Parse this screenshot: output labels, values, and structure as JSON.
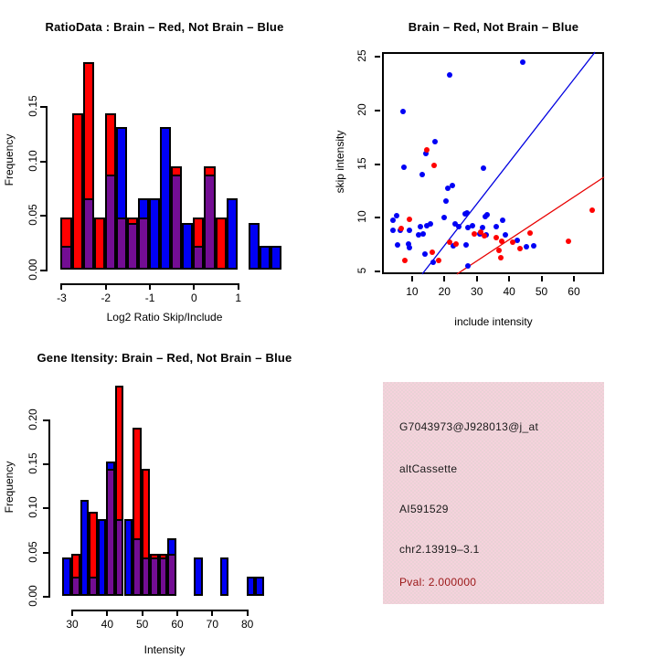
{
  "chart_data": [
    {
      "type": "bar",
      "subtype": "overlaid-histogram",
      "title": "RatioData : Brain – Red, Not Brain – Blue",
      "xlabel": "Log2 Ratio Skip/Include",
      "ylabel": "Frequency",
      "xlim": [
        -3.3,
        1.98
      ],
      "ylim": [
        0,
        0.1993
      ],
      "bin_width": 0.25,
      "xticks": [
        "-3",
        "-2",
        "-1",
        "0",
        "1"
      ],
      "xtick_values": [
        -3,
        -2,
        -1,
        0,
        1
      ],
      "yticks": [
        "0.00",
        "0.05",
        "0.10",
        "0.15"
      ],
      "ytick_values": [
        0,
        0.05,
        0.1,
        0.15
      ],
      "grid": false,
      "legend": "none",
      "series": [
        {
          "name": "Brain",
          "color": "#FF0000"
        },
        {
          "name": "Not Brain",
          "color": "#0000F5"
        },
        {
          "name": "Overlap",
          "color": "#730D93"
        }
      ],
      "bins": [
        {
          "x0": -3.0,
          "red": 0.048,
          "blue": 0.022
        },
        {
          "x0": -2.75,
          "red": 0.143,
          "blue": 0
        },
        {
          "x0": -2.5,
          "red": 0.19,
          "blue": 0.065
        },
        {
          "x0": -2.25,
          "red": 0.048,
          "blue": 0
        },
        {
          "x0": -2.0,
          "red": 0.143,
          "blue": 0.087
        },
        {
          "x0": -1.75,
          "red": 0.048,
          "blue": 0.131
        },
        {
          "x0": -1.5,
          "red": 0.048,
          "blue": 0.043
        },
        {
          "x0": -1.25,
          "red": 0.048,
          "blue": 0.065
        },
        {
          "x0": -1.0,
          "red": 0,
          "blue": 0.065
        },
        {
          "x0": -0.75,
          "red": 0,
          "blue": 0.131
        },
        {
          "x0": -0.5,
          "red": 0.095,
          "blue": 0.087
        },
        {
          "x0": -0.25,
          "red": 0,
          "blue": 0.043
        },
        {
          "x0": 0.0,
          "red": 0.048,
          "blue": 0.022
        },
        {
          "x0": 0.25,
          "red": 0.095,
          "blue": 0.087
        },
        {
          "x0": 0.5,
          "red": 0.048,
          "blue": 0
        },
        {
          "x0": 0.75,
          "red": 0,
          "blue": 0.065
        },
        {
          "x0": 1.25,
          "red": 0,
          "blue": 0.043
        },
        {
          "x0": 1.5,
          "red": 0,
          "blue": 0.022
        },
        {
          "x0": 1.75,
          "red": 0,
          "blue": 0.022
        }
      ]
    },
    {
      "type": "scatter",
      "title": "Brain – Red, Not Brain – Blue",
      "xlabel": "include intensity",
      "ylabel": "skip intensity",
      "xlim": [
        1.0,
        69.6
      ],
      "ylim": [
        4.65,
        25.35
      ],
      "xticks": [
        "10",
        "20",
        "30",
        "40",
        "50",
        "60"
      ],
      "xtick_values": [
        10,
        20,
        30,
        40,
        50,
        60
      ],
      "yticks": [
        "5",
        "10",
        "15",
        "20",
        "25"
      ],
      "ytick_values": [
        5,
        10,
        15,
        20,
        25
      ],
      "grid": false,
      "legend": "none",
      "series": [
        {
          "name": "Not Brain",
          "color": "#0000F5",
          "points": [
            [
              44.5,
              24.4
            ],
            [
              21.8,
              23.2
            ],
            [
              7.5,
              19.8
            ],
            [
              17.5,
              17.0
            ],
            [
              14.6,
              15.9
            ],
            [
              7.7,
              14.6
            ],
            [
              32.3,
              14.5
            ],
            [
              13.4,
              13.9
            ],
            [
              21.3,
              12.7
            ],
            [
              22.8,
              12.9
            ],
            [
              20.8,
              11.5
            ],
            [
              27.2,
              10.4
            ],
            [
              5.5,
              10.1
            ],
            [
              20.2,
              9.9
            ],
            [
              26.7,
              10.3
            ],
            [
              33.4,
              10.2
            ],
            [
              32.8,
              10.0
            ],
            [
              38.4,
              9.7
            ],
            [
              4.3,
              9.7
            ],
            [
              16.1,
              9.3
            ],
            [
              14.9,
              9.2
            ],
            [
              23.5,
              9.3
            ],
            [
              24.7,
              9.1
            ],
            [
              12.8,
              9.1
            ],
            [
              27.5,
              9.0
            ],
            [
              28.9,
              9.2
            ],
            [
              32.0,
              9.0
            ],
            [
              33.1,
              8.3
            ],
            [
              31.1,
              8.4
            ],
            [
              36.2,
              9.1
            ],
            [
              4.5,
              8.7
            ],
            [
              6.6,
              8.7
            ],
            [
              9.4,
              8.7
            ],
            [
              12.2,
              8.3
            ],
            [
              13.6,
              8.4
            ],
            [
              5.8,
              7.4
            ],
            [
              9.2,
              7.5
            ],
            [
              9.4,
              7.1
            ],
            [
              22.9,
              7.3
            ],
            [
              26.9,
              7.4
            ],
            [
              39.0,
              8.3
            ],
            [
              42.7,
              7.8
            ],
            [
              45.5,
              7.2
            ],
            [
              48.0,
              7.3
            ],
            [
              14.2,
              6.5
            ],
            [
              16.8,
              5.8
            ],
            [
              27.5,
              5.4
            ]
          ]
        },
        {
          "name": "Brain",
          "color": "#FF0000",
          "points": [
            [
              14.8,
              16.2
            ],
            [
              17.0,
              14.8
            ],
            [
              9.4,
              9.8
            ],
            [
              6.8,
              8.9
            ],
            [
              21.8,
              7.6
            ],
            [
              23.8,
              7.5
            ],
            [
              29.4,
              8.4
            ],
            [
              31.5,
              8.6
            ],
            [
              32.5,
              8.2
            ],
            [
              36.3,
              8.1
            ],
            [
              38.0,
              7.7
            ],
            [
              41.5,
              7.6
            ],
            [
              43.5,
              7.0
            ],
            [
              46.6,
              8.5
            ],
            [
              58.6,
              7.7
            ],
            [
              66.0,
              10.6
            ],
            [
              8.0,
              5.9
            ],
            [
              16.5,
              6.7
            ],
            [
              18.5,
              5.9
            ],
            [
              37.2,
              6.9
            ],
            [
              37.8,
              6.2
            ]
          ]
        }
      ],
      "lines": [
        {
          "name": "not-brain-fit",
          "color": "#0000E0",
          "x1": 13.4,
          "y1": 4.65,
          "x2": 66.8,
          "y2": 25.35
        },
        {
          "name": "brain-fit",
          "color": "#E80000",
          "x1": 24.1,
          "y1": 4.65,
          "x2": 69.6,
          "y2": 13.7
        }
      ]
    },
    {
      "type": "bar",
      "subtype": "overlaid-histogram",
      "title": "Gene Itensity: Brain – Red, Not Brain – Blue",
      "xlabel": "Intensity",
      "ylabel": "Frequency",
      "xlim": [
        24,
        90
      ],
      "ylim": [
        0,
        0.245
      ],
      "bin_width": 2.5,
      "xticks": [
        "30",
        "40",
        "50",
        "60",
        "70",
        "80"
      ],
      "xtick_values": [
        30,
        40,
        50,
        60,
        70,
        80
      ],
      "yticks": [
        "0.00",
        "0.05",
        "0.10",
        "0.15",
        "0.20"
      ],
      "ytick_values": [
        0,
        0.05,
        0.1,
        0.15,
        0.2
      ],
      "grid": false,
      "legend": "none",
      "series": [
        {
          "name": "Brain",
          "color": "#FF0000"
        },
        {
          "name": "Not Brain",
          "color": "#0000F5"
        },
        {
          "name": "Overlap",
          "color": "#730D93"
        }
      ],
      "bins": [
        {
          "x0": 27.5,
          "red": 0,
          "blue": 0.043
        },
        {
          "x0": 30.0,
          "red": 0.048,
          "blue": 0.022
        },
        {
          "x0": 32.5,
          "red": 0,
          "blue": 0.109
        },
        {
          "x0": 35.0,
          "red": 0.095,
          "blue": 0.022
        },
        {
          "x0": 37.5,
          "red": 0,
          "blue": 0.087
        },
        {
          "x0": 40.0,
          "red": 0.144,
          "blue": 0.152
        },
        {
          "x0": 42.5,
          "red": 0.238,
          "blue": 0.087
        },
        {
          "x0": 45.0,
          "red": 0,
          "blue": 0.087
        },
        {
          "x0": 47.5,
          "red": 0.19,
          "blue": 0.065
        },
        {
          "x0": 50.0,
          "red": 0.144,
          "blue": 0.043
        },
        {
          "x0": 52.5,
          "red": 0.048,
          "blue": 0.043
        },
        {
          "x0": 55.0,
          "red": 0.048,
          "blue": 0.043
        },
        {
          "x0": 57.5,
          "red": 0.048,
          "blue": 0.065
        },
        {
          "x0": 65.0,
          "red": 0,
          "blue": 0.043
        },
        {
          "x0": 72.5,
          "red": 0,
          "blue": 0.043
        },
        {
          "x0": 80.0,
          "red": 0,
          "blue": 0.022
        },
        {
          "x0": 82.5,
          "red": 0,
          "blue": 0.022
        }
      ]
    }
  ],
  "info_panel": {
    "background": "#F0CCD6",
    "lines": [
      {
        "text": "G7043973@J928013@j_at",
        "color": "#1a1a1a"
      },
      {
        "text": "altCassette",
        "color": "#1a1a1a"
      },
      {
        "text": "AI591529",
        "color": "#1a1a1a"
      },
      {
        "text": "chr2.13919–3.1",
        "color": "#1a1a1a"
      },
      {
        "text": "Pval: 2.000000",
        "color": "#9B1717"
      }
    ]
  }
}
